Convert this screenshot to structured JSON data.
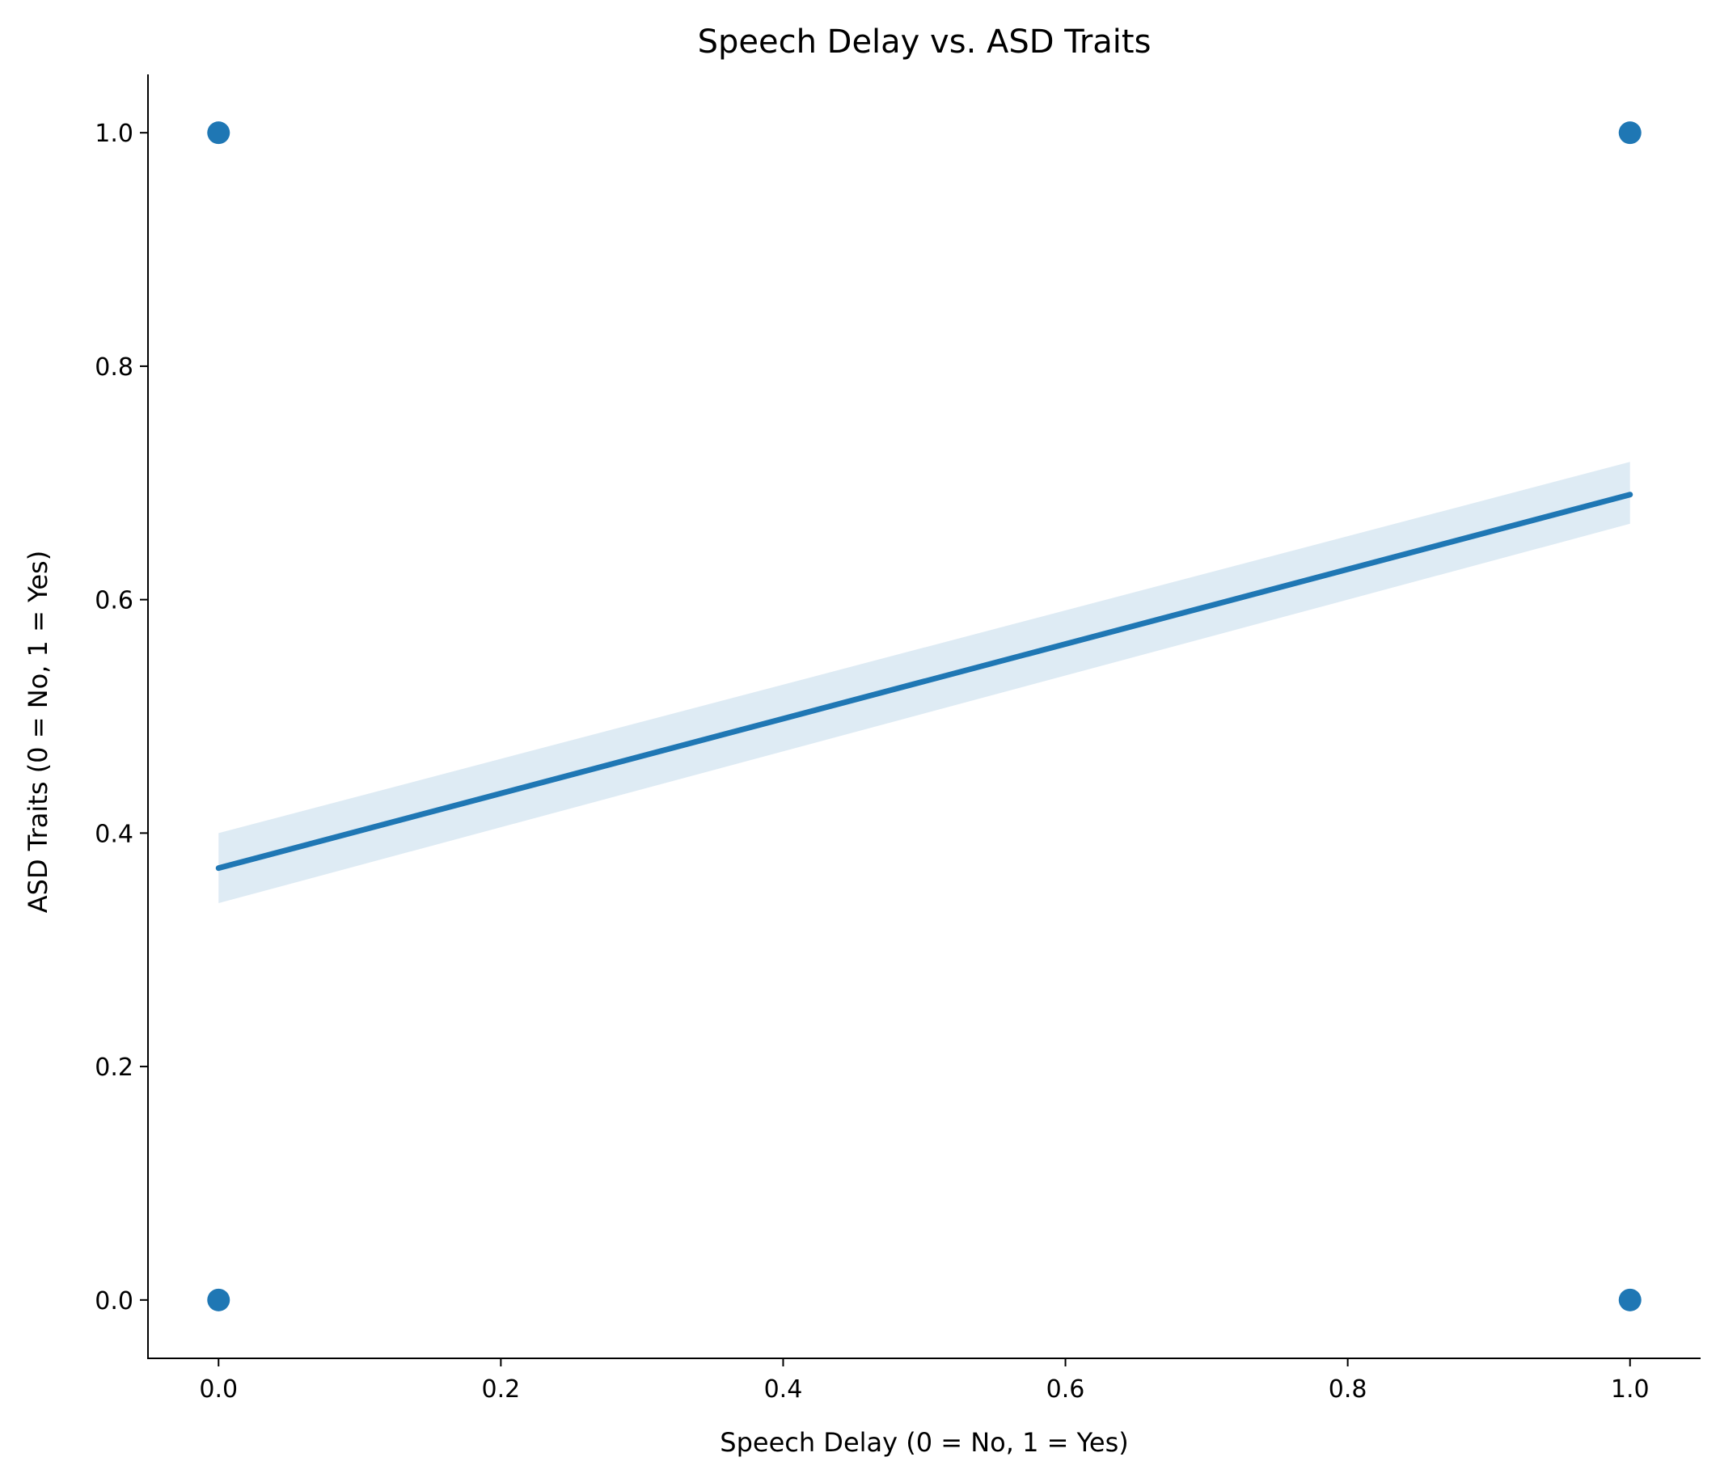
{
  "chart_data": {
    "type": "scatter",
    "title": "Speech Delay vs. ASD Traits",
    "xlabel": "Speech Delay (0 = No, 1 = Yes)",
    "ylabel": "ASD Traits (0 = No, 1 = Yes)",
    "xlim": [
      -0.05,
      1.05
    ],
    "ylim": [
      -0.05,
      1.05
    ],
    "xticks": [
      0.0,
      0.2,
      0.4,
      0.6,
      0.8,
      1.0
    ],
    "xtick_labels": [
      "0.0",
      "0.2",
      "0.4",
      "0.6",
      "0.8",
      "1.0"
    ],
    "yticks": [
      0.0,
      0.2,
      0.4,
      0.6,
      0.8,
      1.0
    ],
    "ytick_labels": [
      "0.0",
      "0.2",
      "0.4",
      "0.6",
      "0.8",
      "1.0"
    ],
    "grid": false,
    "points": [
      {
        "x": 0,
        "y": 1
      },
      {
        "x": 1,
        "y": 1
      },
      {
        "x": 0,
        "y": 0
      },
      {
        "x": 1,
        "y": 0
      }
    ],
    "regression": {
      "x": [
        0,
        1
      ],
      "y": [
        0.37,
        0.69
      ],
      "ci_lower": [
        0.34,
        0.665
      ],
      "ci_upper": [
        0.4,
        0.718
      ]
    },
    "colors": {
      "points": "#1f77b4",
      "line": "#1f77b4",
      "ci_band": "#1f77b4"
    }
  }
}
